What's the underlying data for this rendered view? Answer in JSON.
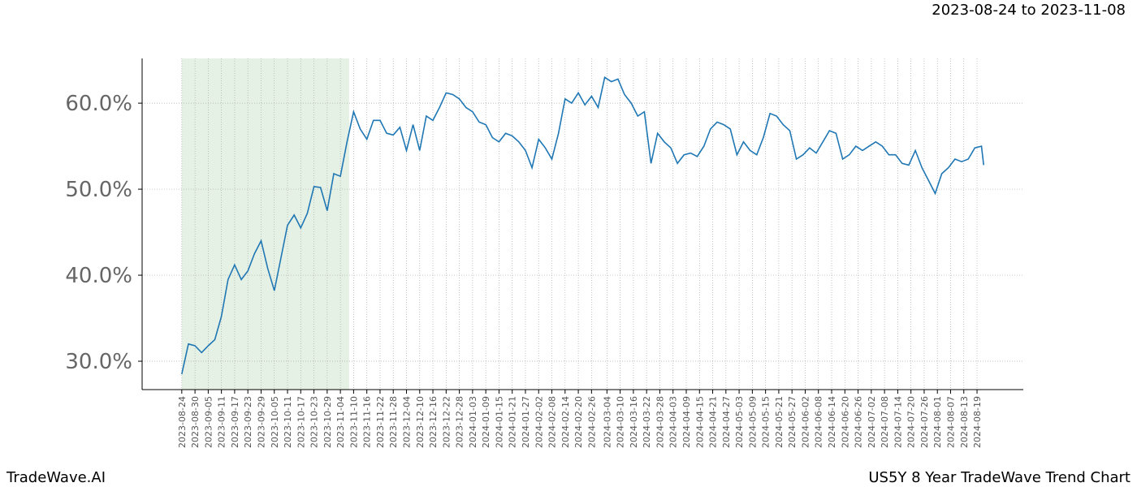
{
  "chart_data": {
    "type": "line",
    "header": "2023-08-24 to 2023-11-08",
    "footer_left": "TradeWave.AI",
    "footer_right": "US5Y 8 Year TradeWave Trend Chart",
    "shaded_range": [
      "2023-08-24",
      "2023-11-08"
    ],
    "shade_color": "#d5e8d4",
    "grid": true,
    "xlim": [
      "2023-08-06",
      "2024-09-09"
    ],
    "ylim": [
      26.7,
      65.2
    ],
    "yticks": [
      {
        "value": 30,
        "label": "30.0%"
      },
      {
        "value": 40,
        "label": "40.0%"
      },
      {
        "value": 50,
        "label": "50.0%"
      },
      {
        "value": 60,
        "label": "60.0%"
      }
    ],
    "xticks": [
      "2023-08-24",
      "2023-08-30",
      "2023-09-05",
      "2023-09-11",
      "2023-09-17",
      "2023-09-23",
      "2023-09-29",
      "2023-10-05",
      "2023-10-11",
      "2023-10-17",
      "2023-10-23",
      "2023-10-29",
      "2023-11-04",
      "2023-11-10",
      "2023-11-16",
      "2023-11-22",
      "2023-11-28",
      "2023-12-04",
      "2023-12-10",
      "2023-12-16",
      "2023-12-22",
      "2023-12-28",
      "2024-01-03",
      "2024-01-09",
      "2024-01-15",
      "2024-01-21",
      "2024-01-27",
      "2024-02-02",
      "2024-02-08",
      "2024-02-14",
      "2024-02-20",
      "2024-02-26",
      "2024-03-04",
      "2024-03-10",
      "2024-03-16",
      "2024-03-22",
      "2024-03-28",
      "2024-04-03",
      "2024-04-09",
      "2024-04-15",
      "2024-04-21",
      "2024-04-27",
      "2024-05-03",
      "2024-05-09",
      "2024-05-15",
      "2024-05-21",
      "2024-05-27",
      "2024-06-02",
      "2024-06-08",
      "2024-06-14",
      "2024-06-20",
      "2024-06-26",
      "2024-07-02",
      "2024-07-08",
      "2024-07-14",
      "2024-07-20",
      "2024-07-26",
      "2024-08-01",
      "2024-08-07",
      "2024-08-13",
      "2024-08-19"
    ],
    "x": [
      "2023-08-24",
      "2023-08-27",
      "2023-08-30",
      "2023-09-02",
      "2023-09-05",
      "2023-09-08",
      "2023-09-11",
      "2023-09-14",
      "2023-09-17",
      "2023-09-20",
      "2023-09-23",
      "2023-09-26",
      "2023-09-29",
      "2023-10-02",
      "2023-10-05",
      "2023-10-08",
      "2023-10-11",
      "2023-10-14",
      "2023-10-17",
      "2023-10-20",
      "2023-10-23",
      "2023-10-26",
      "2023-10-29",
      "2023-11-01",
      "2023-11-04",
      "2023-11-07",
      "2023-11-10",
      "2023-11-13",
      "2023-11-16",
      "2023-11-19",
      "2023-11-22",
      "2023-11-25",
      "2023-11-28",
      "2023-12-01",
      "2023-12-04",
      "2023-12-07",
      "2023-12-10",
      "2023-12-13",
      "2023-12-16",
      "2023-12-19",
      "2023-12-22",
      "2023-12-25",
      "2023-12-28",
      "2023-12-31",
      "2024-01-03",
      "2024-01-06",
      "2024-01-09",
      "2024-01-12",
      "2024-01-15",
      "2024-01-18",
      "2024-01-21",
      "2024-01-24",
      "2024-01-27",
      "2024-01-30",
      "2024-02-02",
      "2024-02-05",
      "2024-02-08",
      "2024-02-11",
      "2024-02-14",
      "2024-02-17",
      "2024-02-20",
      "2024-02-23",
      "2024-02-26",
      "2024-02-29",
      "2024-03-03",
      "2024-03-06",
      "2024-03-09",
      "2024-03-12",
      "2024-03-15",
      "2024-03-18",
      "2024-03-21",
      "2024-03-24",
      "2024-03-27",
      "2024-03-30",
      "2024-04-02",
      "2024-04-05",
      "2024-04-08",
      "2024-04-11",
      "2024-04-14",
      "2024-04-17",
      "2024-04-20",
      "2024-04-23",
      "2024-04-26",
      "2024-04-29",
      "2024-05-02",
      "2024-05-05",
      "2024-05-08",
      "2024-05-11",
      "2024-05-14",
      "2024-05-17",
      "2024-05-20",
      "2024-05-23",
      "2024-05-26",
      "2024-05-29",
      "2024-06-01",
      "2024-06-04",
      "2024-06-07",
      "2024-06-10",
      "2024-06-13",
      "2024-06-16",
      "2024-06-19",
      "2024-06-22",
      "2024-06-25",
      "2024-06-28",
      "2024-07-01",
      "2024-07-04",
      "2024-07-07",
      "2024-07-10",
      "2024-07-13",
      "2024-07-16",
      "2024-07-19",
      "2024-07-22",
      "2024-07-25",
      "2024-07-28",
      "2024-07-31",
      "2024-08-03",
      "2024-08-06",
      "2024-08-09",
      "2024-08-12",
      "2024-08-15",
      "2024-08-18",
      "2024-08-21",
      "2024-08-22"
    ],
    "series": [
      {
        "color": "#1f77b4",
        "values": [
          28.5,
          32.0,
          31.8,
          31.0,
          31.8,
          32.5,
          35.2,
          39.5,
          41.2,
          39.5,
          40.5,
          42.5,
          44.0,
          40.8,
          38.2,
          42.0,
          45.8,
          47.0,
          45.5,
          47.2,
          50.3,
          50.2,
          47.5,
          51.8,
          51.5,
          55.5,
          59.0,
          57.0,
          55.8,
          58.0,
          58.0,
          56.5,
          56.3,
          57.2,
          54.5,
          57.5,
          54.5,
          58.5,
          58.0,
          59.5,
          61.2,
          61.0,
          60.5,
          59.5,
          59.0,
          57.8,
          57.5,
          56.0,
          55.5,
          56.5,
          56.2,
          55.5,
          54.5,
          52.5,
          55.8,
          54.8,
          53.5,
          56.5,
          60.5,
          60.0,
          61.2,
          59.8,
          60.8,
          59.5,
          63.0,
          62.5,
          62.8,
          61.0,
          60.0,
          58.5,
          59.0,
          53.0,
          56.5,
          55.5,
          54.8,
          53.0,
          54.0,
          54.2,
          53.8,
          55.0,
          57.0,
          57.8,
          57.5,
          57.0,
          54.0,
          55.5,
          54.5,
          54.0,
          56.0,
          58.8,
          58.5,
          57.5,
          56.8,
          53.5,
          54.0,
          54.8,
          54.2,
          55.5,
          56.8,
          56.5,
          53.5,
          54.0,
          55.0,
          54.5,
          55.0,
          55.5,
          55.0,
          54.0,
          54.0,
          53.0,
          52.8,
          54.5,
          52.5,
          51.0,
          49.5,
          51.8,
          52.5,
          53.5,
          53.2,
          53.5,
          54.8,
          55.0,
          52.8
        ]
      }
    ]
  }
}
